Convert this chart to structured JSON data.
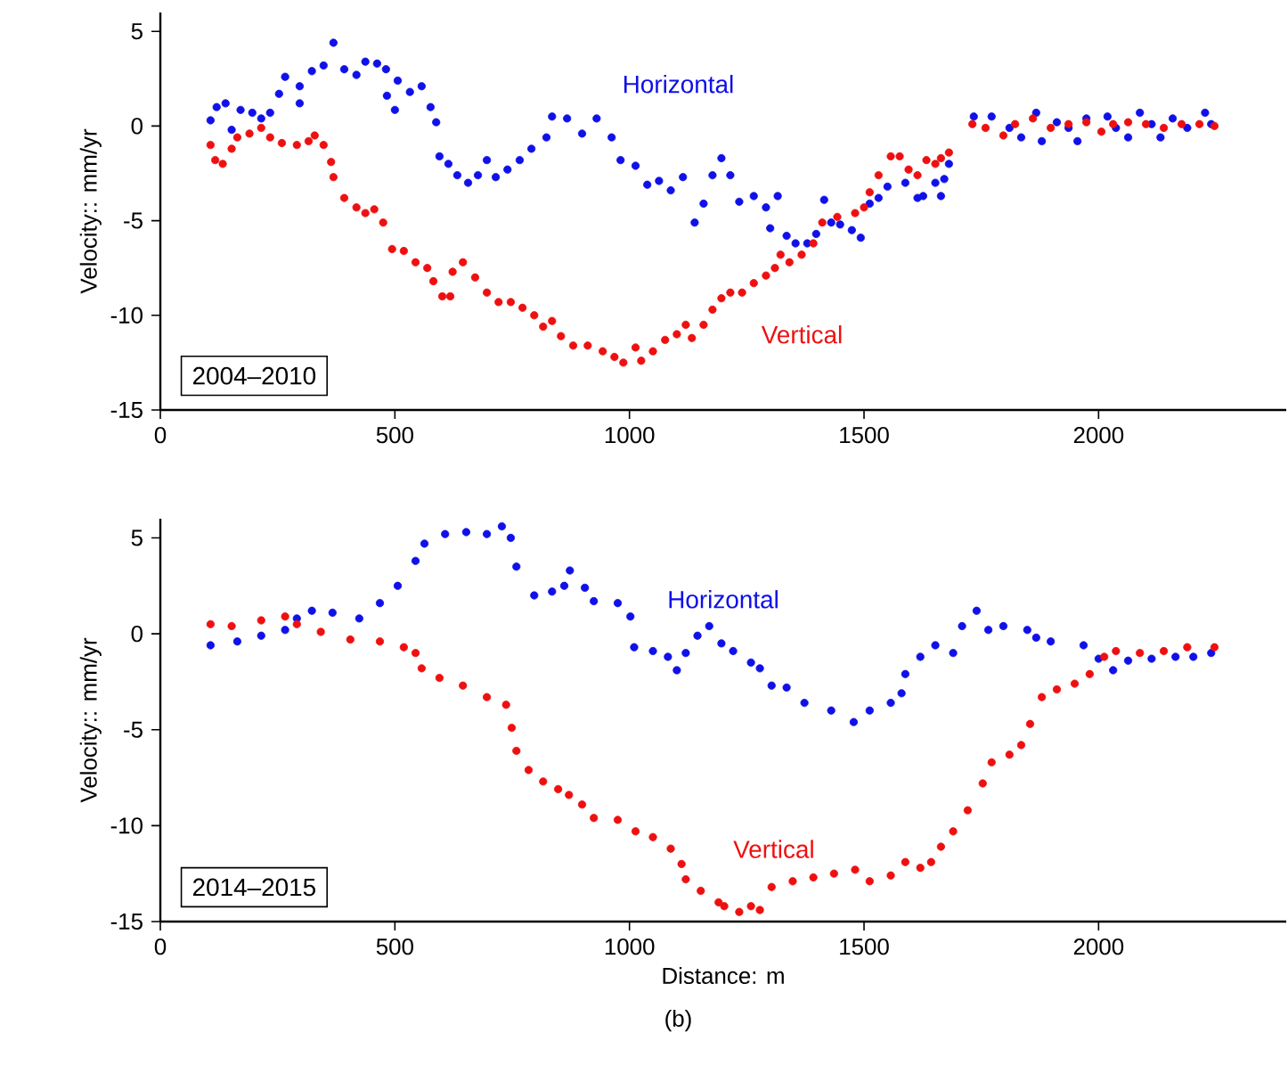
{
  "chart_data": [
    {
      "type": "scatter",
      "ylabel": "Velocity:: mm/yr",
      "xlim": [
        0,
        2400
      ],
      "ylim": [
        -15,
        6
      ],
      "xticks": [
        0,
        500,
        1000,
        1500,
        2000
      ],
      "yticks": [
        -15,
        -10,
        -5,
        0,
        5
      ],
      "marker": "circle",
      "grid": false,
      "legend": false,
      "annotations": [
        "2004–2010"
      ],
      "series": [
        {
          "name": "Horizontal",
          "color": "#1010e8",
          "x": [
            107,
            120,
            139,
            152,
            171,
            196,
            215,
            234,
            253,
            266,
            297,
            297,
            323,
            348,
            369,
            392,
            418,
            437,
            462,
            481,
            483,
            500,
            506,
            532,
            557,
            576,
            588,
            595,
            614,
            633,
            656,
            677,
            696,
            715,
            740,
            766,
            791,
            823,
            835,
            867,
            899,
            930,
            962,
            981,
            1013,
            1038,
            1063,
            1088,
            1114,
            1139,
            1158,
            1177,
            1196,
            1215,
            1234,
            1265,
            1291,
            1316,
            1300,
            1335,
            1354,
            1379,
            1398,
            1415,
            1430,
            1449,
            1474,
            1493,
            1512,
            1531,
            1550,
            1588,
            1614,
            1626,
            1652,
            1664,
            1671,
            1681,
            1734,
            1772,
            1810,
            1835,
            1867,
            1879,
            1911,
            1936,
            1955,
            1974,
            2019,
            2037,
            2063,
            2088,
            2113,
            2132,
            2158,
            2189,
            2227,
            2240
          ],
          "values": [
            0.3,
            1.0,
            1.2,
            -0.2,
            0.85,
            0.7,
            0.4,
            0.7,
            1.7,
            2.6,
            2.1,
            1.2,
            2.9,
            3.2,
            4.4,
            3.0,
            2.7,
            3.4,
            3.3,
            3.0,
            1.6,
            0.85,
            2.4,
            1.8,
            2.1,
            1.0,
            0.2,
            -1.6,
            -2.0,
            -2.6,
            -3.0,
            -2.6,
            -1.8,
            -2.7,
            -2.3,
            -1.8,
            -1.2,
            -0.6,
            0.5,
            0.4,
            -0.4,
            0.4,
            -0.6,
            -1.8,
            -2.1,
            -3.1,
            -2.9,
            -3.4,
            -2.7,
            -5.1,
            -4.1,
            -2.6,
            -1.7,
            -2.6,
            -4.0,
            -3.7,
            -4.3,
            -3.7,
            -5.4,
            -5.8,
            -6.2,
            -6.2,
            -5.7,
            -3.9,
            -5.1,
            -5.2,
            -5.5,
            -5.9,
            -4.1,
            -3.8,
            -3.2,
            -3.0,
            -3.8,
            -3.7,
            -3.0,
            -3.7,
            -2.8,
            -2.0,
            0.5,
            0.5,
            -0.1,
            -0.6,
            0.7,
            -0.8,
            0.2,
            -0.1,
            -0.8,
            0.4,
            0.5,
            -0.1,
            -0.6,
            0.7,
            0.1,
            -0.6,
            0.4,
            -0.1,
            0.7,
            0.1
          ]
        },
        {
          "name": "Vertical",
          "color": "#ee1010",
          "x": [
            107,
            117,
            133,
            152,
            164,
            190,
            215,
            234,
            259,
            291,
            316,
            329,
            348,
            364,
            369,
            392,
            418,
            437,
            456,
            475,
            494,
            519,
            544,
            569,
            582,
            601,
            618,
            623,
            645,
            671,
            696,
            721,
            747,
            772,
            797,
            816,
            835,
            854,
            880,
            911,
            943,
            968,
            987,
            1013,
            1025,
            1050,
            1076,
            1101,
            1120,
            1133,
            1158,
            1177,
            1196,
            1215,
            1240,
            1265,
            1291,
            1310,
            1322,
            1341,
            1367,
            1392,
            1411,
            1443,
            1481,
            1500,
            1512,
            1531,
            1557,
            1576,
            1595,
            1614,
            1633,
            1652,
            1664,
            1681,
            1731,
            1759,
            1797,
            1822,
            1860,
            1898,
            1936,
            1974,
            2006,
            2031,
            2063,
            2101,
            2139,
            2177,
            2215,
            2247
          ],
          "values": [
            -1.0,
            -1.8,
            -2.0,
            -1.2,
            -0.6,
            -0.4,
            -0.1,
            -0.6,
            -0.9,
            -1.0,
            -0.8,
            -0.5,
            -1.0,
            -1.9,
            -2.7,
            -3.8,
            -4.3,
            -4.6,
            -4.4,
            -5.1,
            -6.5,
            -6.6,
            -7.2,
            -7.5,
            -8.2,
            -9.0,
            -9.0,
            -7.7,
            -7.2,
            -8.0,
            -8.8,
            -9.3,
            -9.3,
            -9.6,
            -10.0,
            -10.6,
            -10.3,
            -11.1,
            -11.6,
            -11.6,
            -11.9,
            -12.2,
            -12.5,
            -11.7,
            -12.4,
            -11.9,
            -11.3,
            -11.0,
            -10.5,
            -11.2,
            -10.5,
            -9.7,
            -9.1,
            -8.8,
            -8.8,
            -8.3,
            -7.9,
            -7.5,
            -6.8,
            -7.2,
            -6.8,
            -6.2,
            -5.1,
            -4.8,
            -4.6,
            -4.3,
            -3.5,
            -2.6,
            -1.6,
            -1.6,
            -2.3,
            -2.6,
            -1.8,
            -2.0,
            -1.7,
            -1.4,
            0.1,
            -0.1,
            -0.5,
            0.1,
            0.4,
            -0.1,
            0.1,
            0.2,
            -0.3,
            0.1,
            0.2,
            0.1,
            -0.1,
            0.1,
            0.1,
            0.0
          ]
        }
      ]
    },
    {
      "type": "scatter",
      "xlabel": "Distance: m",
      "ylabel": "Velocity:: mm/yr",
      "xlim": [
        0,
        2400
      ],
      "ylim": [
        -15,
        6
      ],
      "xticks": [
        0,
        500,
        1000,
        1500,
        2000
      ],
      "yticks": [
        -15,
        -10,
        -5,
        0,
        5
      ],
      "marker": "circle",
      "grid": false,
      "legend": false,
      "annotations": [
        "2014–2015",
        "(b)"
      ],
      "series": [
        {
          "name": "Horizontal",
          "color": "#1010e8",
          "x": [
            107,
            164,
            215,
            266,
            291,
            323,
            367,
            424,
            468,
            506,
            544,
            563,
            607,
            652,
            696,
            728,
            747,
            759,
            797,
            835,
            861,
            873,
            905,
            924,
            975,
            1002,
            1010,
            1050,
            1082,
            1101,
            1120,
            1145,
            1170,
            1196,
            1221,
            1259,
            1278,
            1303,
            1335,
            1373,
            1430,
            1478,
            1512,
            1557,
            1580,
            1588,
            1620,
            1652,
            1690,
            1709,
            1740,
            1765,
            1797,
            1848,
            1867,
            1898,
            1968,
            2000,
            2031,
            2063,
            2113,
            2164,
            2202,
            2240
          ],
          "values": [
            -0.6,
            -0.4,
            -0.1,
            0.2,
            0.8,
            1.2,
            1.1,
            0.8,
            1.6,
            2.5,
            3.8,
            4.7,
            5.2,
            5.3,
            5.2,
            5.6,
            5.0,
            3.5,
            2.0,
            2.2,
            2.5,
            3.3,
            2.4,
            1.7,
            1.6,
            0.9,
            -0.7,
            -0.9,
            -1.2,
            -1.9,
            -1.0,
            -0.1,
            0.4,
            -0.5,
            -0.9,
            -1.5,
            -1.8,
            -2.7,
            -2.8,
            -3.6,
            -4.0,
            -4.6,
            -4.0,
            -3.6,
            -3.1,
            -2.1,
            -1.2,
            -0.6,
            -1.0,
            0.4,
            1.2,
            0.2,
            0.4,
            0.2,
            -0.2,
            -0.4,
            -0.6,
            -1.3,
            -1.9,
            -1.4,
            -1.3,
            -1.2,
            -1.2,
            -1.0
          ]
        },
        {
          "name": "Vertical",
          "color": "#ee1010",
          "x": [
            107,
            152,
            215,
            266,
            291,
            342,
            405,
            468,
            519,
            544,
            557,
            595,
            645,
            696,
            737,
            749,
            759,
            785,
            816,
            848,
            871,
            899,
            924,
            975,
            1013,
            1050,
            1088,
            1111,
            1120,
            1152,
            1190,
            1202,
            1234,
            1259,
            1278,
            1303,
            1348,
            1392,
            1436,
            1481,
            1512,
            1557,
            1588,
            1620,
            1643,
            1664,
            1690,
            1721,
            1753,
            1772,
            1810,
            1835,
            1854,
            1879,
            1911,
            1949,
            1981,
            2012,
            2037,
            2088,
            2139,
            2189,
            2247
          ],
          "values": [
            0.5,
            0.4,
            0.7,
            0.9,
            0.5,
            0.1,
            -0.3,
            -0.4,
            -0.7,
            -1.0,
            -1.8,
            -2.3,
            -2.7,
            -3.3,
            -3.7,
            -4.9,
            -6.1,
            -7.1,
            -7.7,
            -8.1,
            -8.4,
            -8.9,
            -9.6,
            -9.7,
            -10.3,
            -10.6,
            -11.2,
            -12.0,
            -12.8,
            -13.4,
            -14.0,
            -14.2,
            -14.5,
            -14.2,
            -14.4,
            -13.2,
            -12.9,
            -12.7,
            -12.5,
            -12.3,
            -12.9,
            -12.6,
            -11.9,
            -12.2,
            -11.9,
            -11.1,
            -10.3,
            -9.2,
            -7.8,
            -6.7,
            -6.3,
            -5.8,
            -4.7,
            -3.3,
            -2.9,
            -2.6,
            -2.1,
            -1.2,
            -0.9,
            -1.0,
            -0.9,
            -0.7,
            -0.7
          ]
        }
      ]
    }
  ]
}
